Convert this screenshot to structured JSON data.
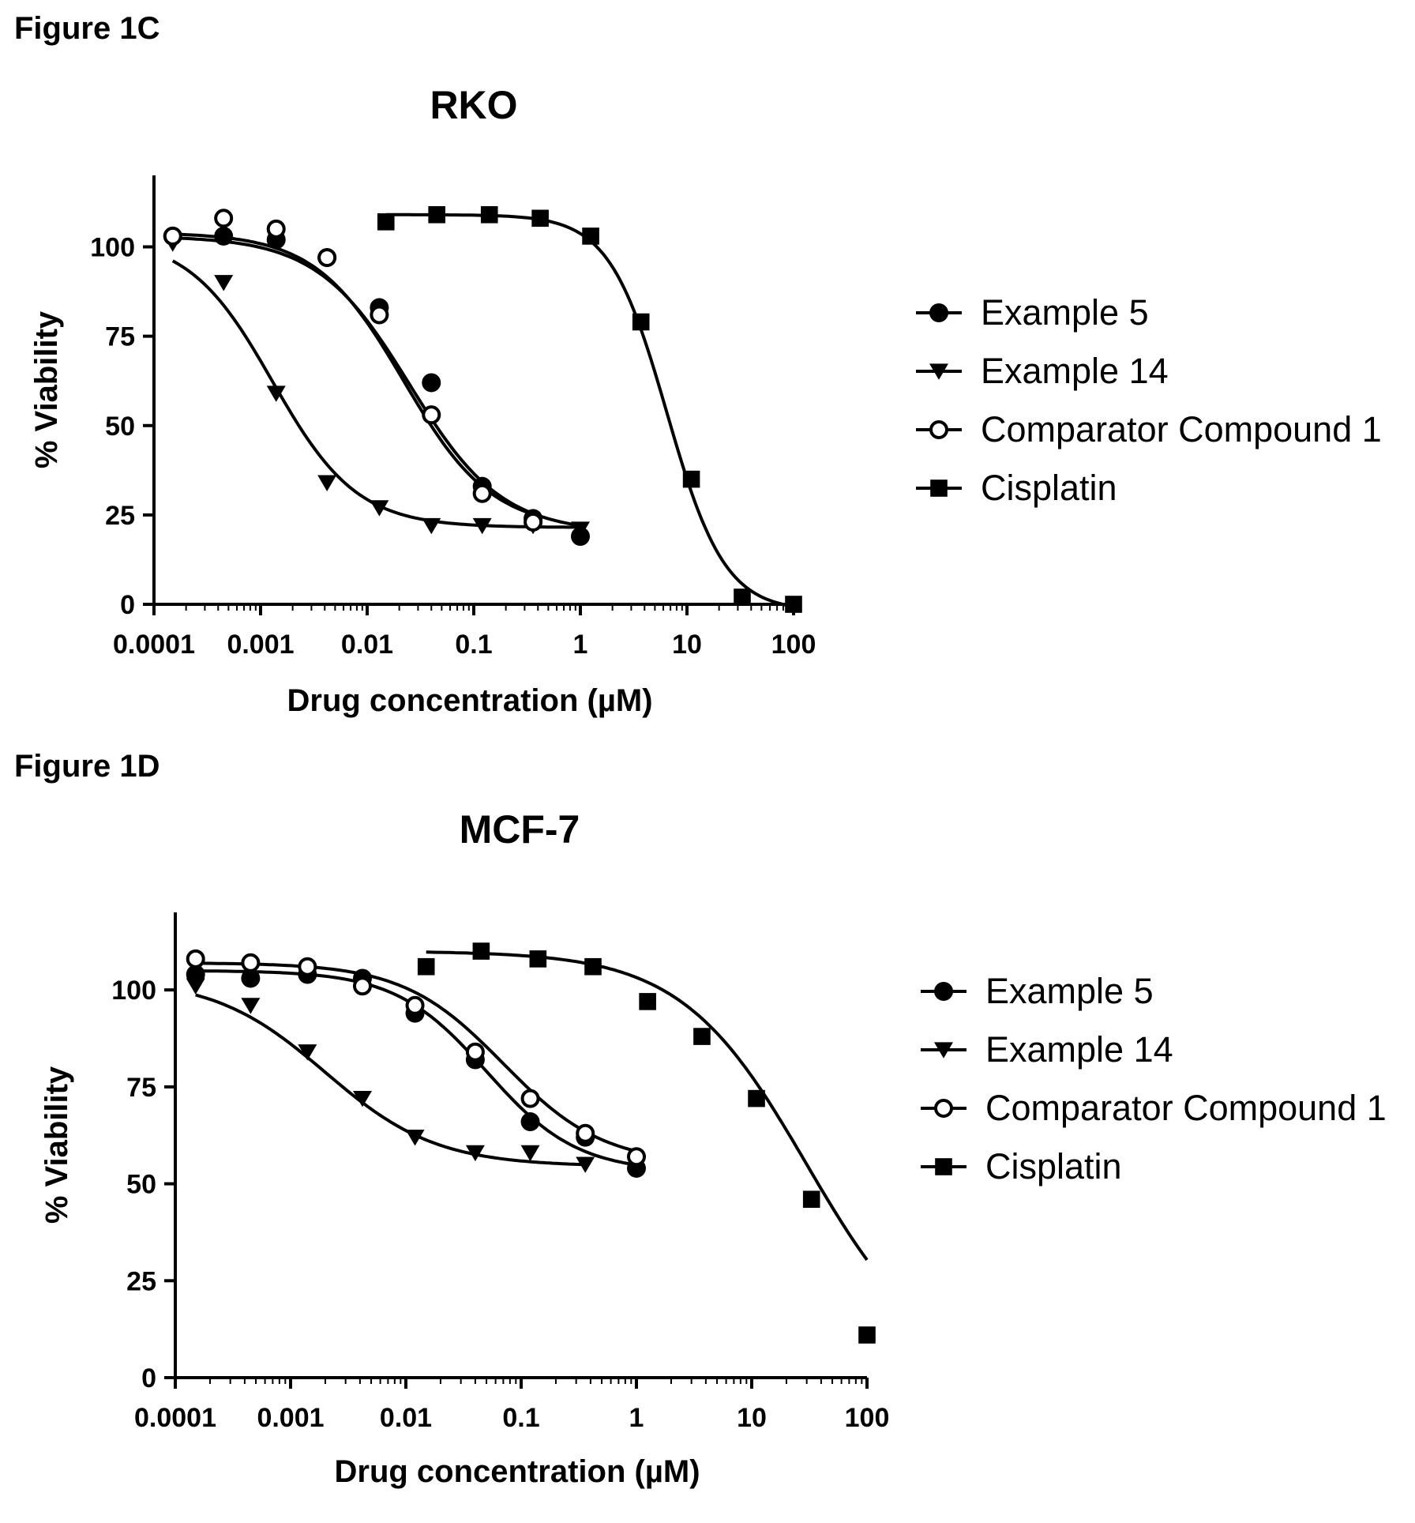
{
  "chart_data": [
    {
      "figure_label": "Figure 1C",
      "type": "line",
      "title": "RKO",
      "xlabel": "Drug concentration (µM)",
      "ylabel": "% Viability",
      "x_scale": "log",
      "xlim": [
        0.0001,
        100
      ],
      "ylim": [
        0,
        120
      ],
      "x_ticks": [
        0.0001,
        0.001,
        0.01,
        0.1,
        1,
        10,
        100
      ],
      "x_tick_labels": [
        "0.0001",
        "0.001",
        "0.01",
        "0.1",
        "1",
        "10",
        "100"
      ],
      "y_ticks": [
        0,
        25,
        50,
        75,
        100
      ],
      "y_tick_labels": [
        "0",
        "25",
        "50",
        "75",
        "100"
      ],
      "legend_position": "right",
      "series": [
        {
          "name": "Example 5",
          "marker": "circle",
          "x": [
            0.00015,
            0.00045,
            0.0014,
            0.0042,
            0.013,
            0.04,
            0.12,
            0.36,
            1.0
          ],
          "y": [
            103,
            103,
            102,
            97,
            83,
            62,
            33,
            24,
            19
          ],
          "curve": {
            "top": 103,
            "bottom": 20,
            "ec50": 0.025,
            "hill": 1.0
          }
        },
        {
          "name": "Example 14",
          "marker": "triangle-down",
          "x": [
            0.00015,
            0.00045,
            0.0014,
            0.0042,
            0.013,
            0.04,
            0.12,
            0.36,
            1.0
          ],
          "y": [
            101,
            90,
            59,
            34,
            27,
            22,
            22,
            22,
            21
          ],
          "curve": {
            "top": 103,
            "bottom": 21.5,
            "ec50": 0.0013,
            "hill": 1.1
          }
        },
        {
          "name": "Comparator Compound 1",
          "marker": "circle-open",
          "x": [
            0.00015,
            0.00045,
            0.0014,
            0.0042,
            0.013,
            0.04,
            0.12,
            0.36
          ],
          "y": [
            103,
            108,
            105,
            97,
            81,
            53,
            31,
            23
          ],
          "curve": {
            "top": 104,
            "bottom": 21,
            "ec50": 0.022,
            "hill": 1.05
          }
        },
        {
          "name": "Cisplatin",
          "marker": "square",
          "x": [
            0.015,
            0.045,
            0.14,
            0.42,
            1.25,
            3.7,
            11,
            33,
            100
          ],
          "y": [
            107,
            109,
            109,
            108,
            103,
            79,
            35,
            2,
            0
          ],
          "curve": {
            "top": 109,
            "bottom": -2,
            "ec50": 6.5,
            "hill": 1.6
          }
        }
      ]
    },
    {
      "figure_label": "Figure 1D",
      "type": "line",
      "title": "MCF-7",
      "xlabel": "Drug concentration (µM)",
      "ylabel": "% Viability",
      "x_scale": "log",
      "xlim": [
        0.0001,
        100
      ],
      "ylim": [
        0,
        120
      ],
      "x_ticks": [
        0.0001,
        0.001,
        0.01,
        0.1,
        1,
        10,
        100
      ],
      "x_tick_labels": [
        "0.0001",
        "0.001",
        "0.01",
        "0.1",
        "1",
        "10",
        "100"
      ],
      "y_ticks": [
        0,
        25,
        50,
        75,
        100
      ],
      "y_tick_labels": [
        "0",
        "25",
        "50",
        "75",
        "100"
      ],
      "legend_position": "right",
      "series": [
        {
          "name": "Example 5",
          "marker": "circle",
          "x": [
            0.00015,
            0.00045,
            0.0014,
            0.0042,
            0.012,
            0.04,
            0.12,
            0.36,
            1.0
          ],
          "y": [
            104,
            103,
            104,
            103,
            94,
            82,
            66,
            62,
            54
          ],
          "curve": {
            "top": 105,
            "bottom": 53,
            "ec50": 0.05,
            "hill": 1.1
          }
        },
        {
          "name": "Example 14",
          "marker": "triangle-down",
          "x": [
            0.00015,
            0.00045,
            0.0014,
            0.0042,
            0.012,
            0.04,
            0.12,
            0.36
          ],
          "y": [
            101,
            96,
            84,
            72,
            62,
            58,
            58,
            55
          ],
          "curve": {
            "top": 103,
            "bottom": 54.5,
            "ec50": 0.002,
            "hill": 0.9
          }
        },
        {
          "name": "Comparator Compound 1",
          "marker": "circle-open",
          "x": [
            0.00015,
            0.00045,
            0.0014,
            0.0042,
            0.012,
            0.04,
            0.12,
            0.36,
            1.0
          ],
          "y": [
            108,
            107,
            106,
            101,
            96,
            84,
            72,
            63,
            57
          ],
          "curve": {
            "top": 107,
            "bottom": 55,
            "ec50": 0.07,
            "hill": 1.0
          }
        },
        {
          "name": "Cisplatin",
          "marker": "square",
          "x": [
            0.015,
            0.045,
            0.14,
            0.42,
            1.25,
            3.7,
            11,
            33,
            100
          ],
          "y": [
            106,
            110,
            108,
            106,
            97,
            88,
            72,
            46,
            11
          ],
          "curve": {
            "top": 110,
            "bottom": 0,
            "ec50": 30,
            "hill": 0.8
          }
        }
      ]
    }
  ]
}
